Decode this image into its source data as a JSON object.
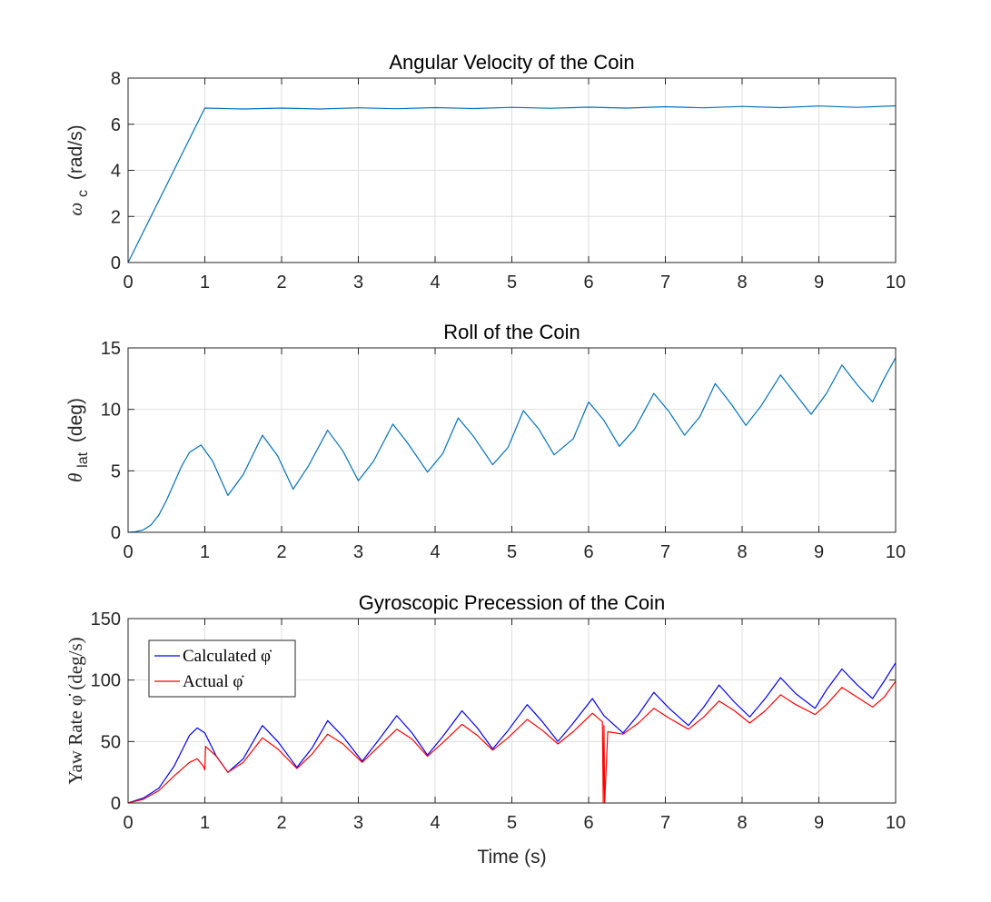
{
  "chart_data": [
    {
      "type": "line",
      "title": "Angular Velocity of the Coin",
      "ylabel": {
        "symbol": "ω",
        "subscript": "c",
        "unit": "(rad/s)"
      },
      "xlabel": "",
      "xlim": [
        0,
        10
      ],
      "ylim": [
        0,
        8
      ],
      "xticks": [
        "0",
        "1",
        "2",
        "3",
        "4",
        "5",
        "6",
        "7",
        "8",
        "9",
        "10"
      ],
      "yticks": [
        "0",
        "2",
        "4",
        "6",
        "8"
      ],
      "grid": true,
      "series": [
        {
          "color": "#0072BD",
          "x": [
            0,
            1,
            1.5,
            2,
            2.5,
            3,
            3.5,
            4,
            4.5,
            5,
            5.5,
            6,
            6.5,
            7,
            7.5,
            8,
            8.5,
            9,
            9.5,
            10
          ],
          "y": [
            0,
            6.7,
            6.66,
            6.7,
            6.66,
            6.71,
            6.67,
            6.72,
            6.68,
            6.73,
            6.69,
            6.74,
            6.7,
            6.76,
            6.71,
            6.77,
            6.72,
            6.79,
            6.73,
            6.8
          ]
        }
      ]
    },
    {
      "type": "line",
      "title": "Roll of the Coin",
      "ylabel": {
        "symbol": "θ",
        "subscript": "lat",
        "unit": "(deg)"
      },
      "xlabel": "",
      "xlim": [
        0,
        10
      ],
      "ylim": [
        0,
        15
      ],
      "xticks": [
        "0",
        "1",
        "2",
        "3",
        "4",
        "5",
        "6",
        "7",
        "8",
        "9",
        "10"
      ],
      "yticks": [
        "0",
        "5",
        "10",
        "15"
      ],
      "grid": true,
      "series": [
        {
          "color": "#0072BD",
          "x": [
            0,
            0.1,
            0.2,
            0.3,
            0.4,
            0.5,
            0.6,
            0.7,
            0.8,
            0.95,
            1.1,
            1.3,
            1.5,
            1.75,
            1.95,
            2.15,
            2.35,
            2.6,
            2.8,
            3.0,
            3.2,
            3.45,
            3.65,
            3.9,
            4.1,
            4.3,
            4.5,
            4.75,
            4.95,
            5.15,
            5.35,
            5.55,
            5.8,
            6.0,
            6.2,
            6.4,
            6.6,
            6.85,
            7.05,
            7.25,
            7.45,
            7.65,
            7.85,
            8.05,
            8.25,
            8.5,
            8.7,
            8.9,
            9.1,
            9.3,
            9.5,
            9.7,
            9.85,
            10.0
          ],
          "y": [
            0,
            0.05,
            0.2,
            0.6,
            1.4,
            2.6,
            4.0,
            5.4,
            6.5,
            7.1,
            5.8,
            3.0,
            4.7,
            7.9,
            6.2,
            3.5,
            5.4,
            8.3,
            6.6,
            4.2,
            5.8,
            8.8,
            7.2,
            4.9,
            6.4,
            9.3,
            7.8,
            5.5,
            6.9,
            9.9,
            8.4,
            6.3,
            7.6,
            10.6,
            9.1,
            7.0,
            8.4,
            11.3,
            9.8,
            7.9,
            9.4,
            12.1,
            10.5,
            8.7,
            10.3,
            12.8,
            11.2,
            9.6,
            11.3,
            13.6,
            12.0,
            10.6,
            12.5,
            14.2
          ]
        }
      ]
    },
    {
      "type": "line",
      "title": "Gyroscopic Precession of the Coin",
      "ylabel": "Yaw Rate φ̇ (deg/s)",
      "xlabel": "Time (s)",
      "xlim": [
        0,
        10
      ],
      "ylim": [
        0,
        150
      ],
      "xticks": [
        "0",
        "1",
        "2",
        "3",
        "4",
        "5",
        "6",
        "7",
        "8",
        "9",
        "10"
      ],
      "yticks": [
        "0",
        "50",
        "100",
        "150"
      ],
      "grid": true,
      "legend": {
        "placement": "top-left"
      },
      "series": [
        {
          "name": "Calculated φ̇",
          "color": "#0000FF",
          "x": [
            0,
            0.2,
            0.4,
            0.6,
            0.8,
            0.9,
            1.0,
            1.15,
            1.3,
            1.5,
            1.75,
            1.95,
            2.2,
            2.4,
            2.6,
            2.8,
            3.05,
            3.25,
            3.5,
            3.7,
            3.9,
            4.1,
            4.35,
            4.55,
            4.75,
            4.95,
            5.2,
            5.4,
            5.6,
            5.8,
            6.05,
            6.2,
            6.45,
            6.65,
            6.85,
            7.05,
            7.3,
            7.5,
            7.7,
            7.9,
            8.1,
            8.3,
            8.5,
            8.7,
            8.95,
            9.1,
            9.3,
            9.5,
            9.7,
            9.85,
            10.0
          ],
          "y": [
            0,
            4,
            12,
            30,
            55,
            61,
            57,
            38,
            25,
            36,
            63,
            50,
            29,
            45,
            67,
            54,
            34,
            50,
            71,
            57,
            39,
            54,
            75,
            61,
            44,
            59,
            80,
            66,
            50,
            65,
            85,
            71,
            57,
            72,
            90,
            77,
            63,
            78,
            96,
            82,
            70,
            85,
            102,
            89,
            77,
            92,
            109,
            96,
            85,
            99,
            114
          ]
        },
        {
          "name": "Actual φ̇",
          "color": "#FF0000",
          "x": [
            0,
            0.2,
            0.4,
            0.6,
            0.8,
            0.9,
            0.98,
            1.0,
            1.01,
            1.15,
            1.3,
            1.5,
            1.75,
            1.95,
            2.2,
            2.4,
            2.6,
            2.8,
            3.05,
            3.25,
            3.5,
            3.7,
            3.9,
            4.1,
            4.35,
            4.55,
            4.75,
            4.95,
            5.2,
            5.4,
            5.6,
            5.8,
            6.05,
            6.18,
            6.19,
            6.2,
            6.21,
            6.25,
            6.45,
            6.65,
            6.85,
            7.05,
            7.3,
            7.5,
            7.7,
            7.9,
            8.1,
            8.3,
            8.5,
            8.7,
            8.95,
            9.1,
            9.3,
            9.5,
            9.7,
            9.85,
            10.0
          ],
          "y": [
            0,
            3,
            10,
            22,
            33,
            36,
            30,
            27,
            46,
            38,
            25,
            33,
            53,
            44,
            28,
            40,
            56,
            48,
            33,
            45,
            60,
            52,
            38,
            49,
            64,
            55,
            43,
            53,
            68,
            59,
            48,
            58,
            73,
            66,
            0,
            63,
            0,
            58,
            56,
            65,
            77,
            69,
            60,
            70,
            83,
            75,
            65,
            75,
            88,
            80,
            72,
            80,
            94,
            86,
            78,
            86,
            99
          ]
        }
      ]
    }
  ]
}
